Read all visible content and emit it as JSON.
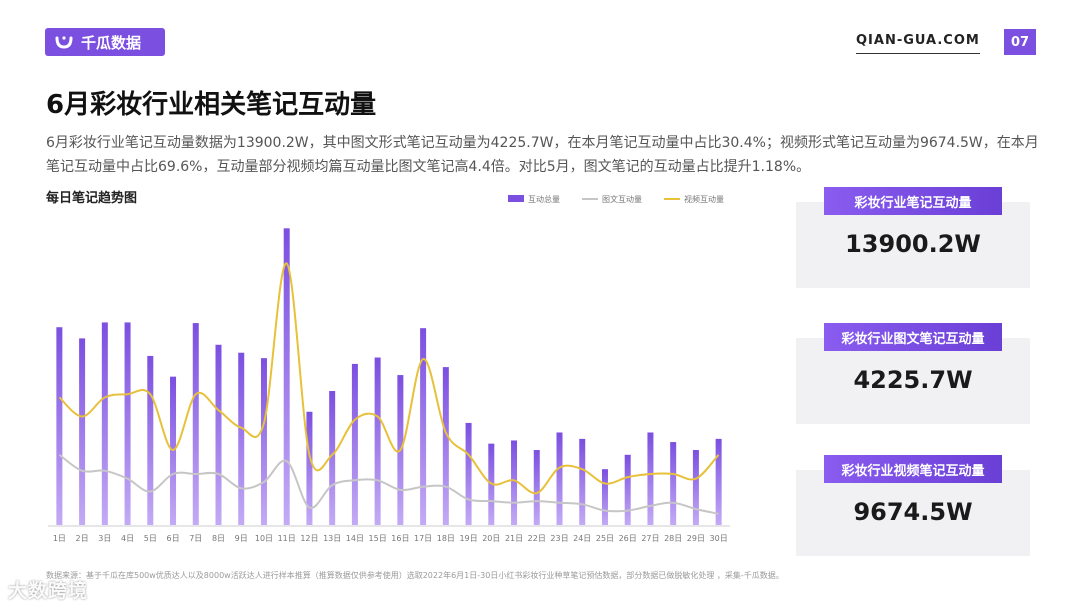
{
  "brand": {
    "logo_text": "千瓜数据",
    "url": "QIAN-GUA.COM",
    "page_number": "07"
  },
  "title": "6月彩妆行业相关笔记互动量",
  "summary": "6月彩妆行业笔记互动量数据为13900.2W，其中图文形式笔记互动量为4225.7W，在本月笔记互动量中占比30.4%；视频形式笔记互动量为9674.5W，在本月笔记互动量中占比69.6%，互动量部分视频均篇互动量比图文笔记高4.4倍。对比5月，图文笔记的互动量占比提升1.18%。",
  "chart_title": "每日笔记趋势图",
  "kpis": [
    {
      "label": "彩妆行业笔记互动量",
      "value": "13900.2W"
    },
    {
      "label": "彩妆行业图文笔记互动量",
      "value": "4225.7W"
    },
    {
      "label": "彩妆行业视频笔记互动量",
      "value": "9674.5W"
    }
  ],
  "footnote": "数据来源：基于千瓜在库500w优质达人以及8000w活跃达人进行样本推算（推算数据仅供参考使用）选取2022年6月1日-30日小红书彩妆行业种草笔记预估数据，部分数据已做脱敏化处理 ，采集-千瓜数据。",
  "watermark": "大数跨境",
  "colors": {
    "bar": "#7b4fe0",
    "bar_light": "#c3aaf5",
    "image_text_line": "#c6c6c6",
    "video_line": "#e8c13a"
  },
  "chart_data": {
    "type": "bar",
    "categories": [
      "1日",
      "2日",
      "3日",
      "4日",
      "5日",
      "6日",
      "7日",
      "8日",
      "9日",
      "10日",
      "11日",
      "12日",
      "13日",
      "14日",
      "15日",
      "16日",
      "17日",
      "18日",
      "19日",
      "20日",
      "21日",
      "22日",
      "23日",
      "24日",
      "25日",
      "26日",
      "27日",
      "28日",
      "29日",
      "30日"
    ],
    "series": [
      {
        "name": "互动总量",
        "type": "bar",
        "values": [
          620,
          585,
          635,
          635,
          530,
          465,
          633,
          565,
          540,
          523,
          930,
          355,
          420,
          505,
          525,
          470,
          617,
          495,
          320,
          255,
          265,
          235,
          290,
          270,
          175,
          220,
          290,
          260,
          235,
          270
        ]
      },
      {
        "name": "图文互动量",
        "type": "line",
        "values": [
          220,
          170,
          170,
          145,
          105,
          160,
          160,
          160,
          115,
          135,
          200,
          55,
          125,
          140,
          140,
          110,
          120,
          120,
          80,
          75,
          70,
          75,
          70,
          65,
          45,
          45,
          60,
          70,
          50,
          35
        ]
      },
      {
        "name": "视频互动量",
        "type": "line",
        "values": [
          400,
          340,
          400,
          410,
          410,
          235,
          410,
          360,
          305,
          320,
          820,
          220,
          220,
          330,
          340,
          235,
          520,
          290,
          220,
          130,
          140,
          100,
          180,
          175,
          130,
          150,
          160,
          160,
          145,
          220
        ]
      }
    ],
    "ylim": [
      0,
      1000
    ],
    "grid": false,
    "legend_position": "top"
  }
}
